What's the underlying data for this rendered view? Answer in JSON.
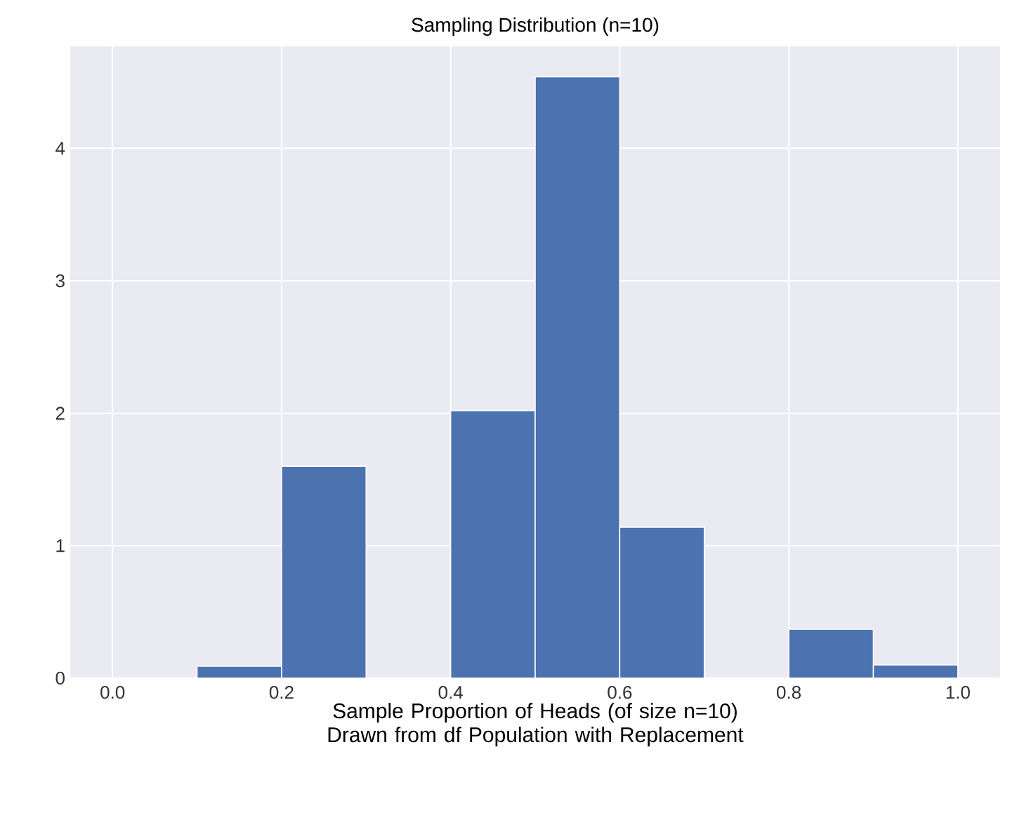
{
  "chart_data": {
    "type": "histogram",
    "title": "Sampling Distribution (n=10)",
    "xlabel": "Sample Proportion of Heads (of size n=10) Drawn from df Population with Replacement",
    "bins": [
      0.0,
      0.1,
      0.2,
      0.3,
      0.4,
      0.5,
      0.6,
      0.7,
      0.8,
      0.9,
      1.0
    ],
    "values": [
      0,
      0.09,
      1.6,
      0,
      2.02,
      4.54,
      1.14,
      0,
      0.37,
      0.1
    ],
    "color": "#4c72b0",
    "xlim": [
      -0.05,
      1.05
    ],
    "ylim": [
      0,
      4.77
    ],
    "xticks": [
      {
        "value": 0,
        "label": "0.0"
      },
      0.2,
      0.4,
      0.6,
      0.8,
      {
        "value": 1,
        "label": "1.0"
      }
    ],
    "yticks": [
      0,
      1,
      2,
      3,
      4
    ],
    "grid": true
  }
}
